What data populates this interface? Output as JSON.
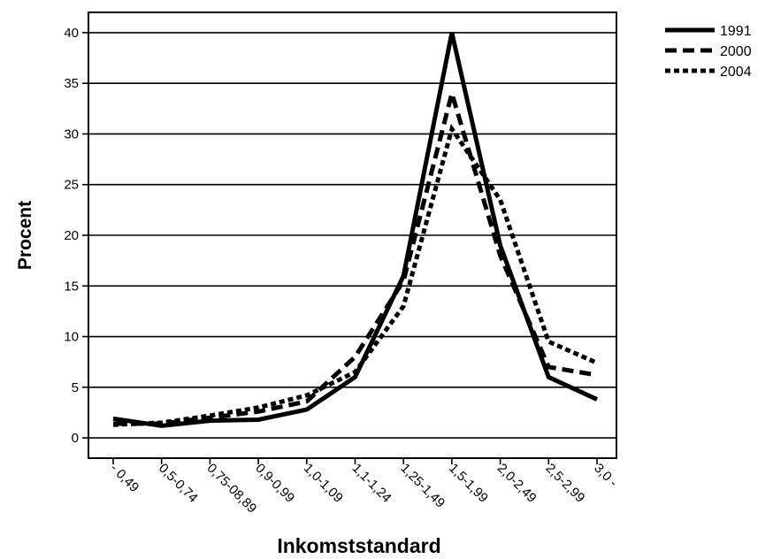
{
  "chart_data": {
    "type": "line",
    "xlabel": "Inkomststandard",
    "ylabel": "Procent",
    "categories": [
      "- 0,49",
      "0,5-0,74",
      "0,75-08,89",
      "0,9-0,99",
      "1,0-1,09",
      "1,1-1,24",
      "1,25-1,49",
      "1,5-1,99",
      "2,0-2,49",
      "2,5-2,99",
      "3,0 -"
    ],
    "yticks": [
      "0",
      "5",
      "10",
      "15",
      "20",
      "25",
      "30",
      "35",
      "40"
    ],
    "ylim": [
      -2,
      42
    ],
    "grid": "horizontal",
    "legend_position": "top-right",
    "series": [
      {
        "name": "1991",
        "values": [
          1.9,
          1.2,
          1.7,
          1.8,
          2.8,
          6.0,
          16.0,
          40.0,
          19.0,
          6.0,
          3.8
        ]
      },
      {
        "name": "2000",
        "values": [
          1.4,
          1.4,
          2.0,
          2.6,
          3.6,
          8.0,
          15.5,
          34.0,
          18.0,
          7.0,
          6.2
        ]
      },
      {
        "name": "2004",
        "values": [
          1.3,
          1.5,
          2.2,
          3.0,
          4.2,
          6.5,
          13.0,
          30.5,
          23.5,
          9.5,
          7.4
        ]
      }
    ]
  }
}
